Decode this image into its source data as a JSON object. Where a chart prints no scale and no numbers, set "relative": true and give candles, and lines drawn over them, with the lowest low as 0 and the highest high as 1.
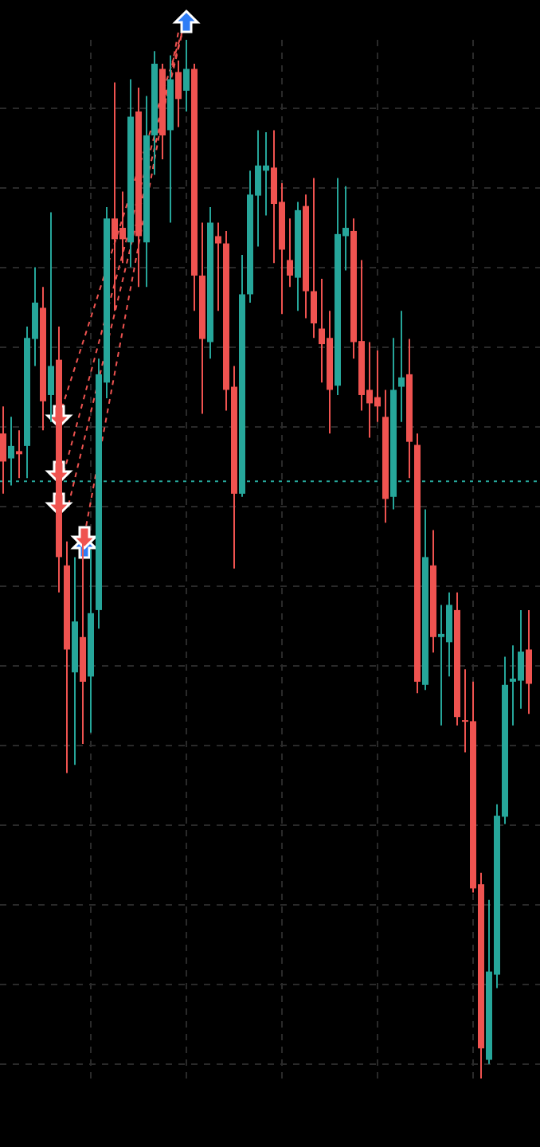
{
  "chart_data": {
    "type": "candlestick",
    "relative": true,
    "grid": true,
    "categories": [
      null,
      null,
      null,
      null,
      null,
      null,
      null,
      null,
      null,
      null,
      null,
      null,
      null,
      null,
      null,
      null,
      null,
      null,
      null,
      null,
      null,
      null,
      null,
      null,
      null,
      null,
      null,
      null,
      null,
      null,
      null,
      null,
      null,
      null,
      null,
      null,
      null,
      null,
      null,
      null,
      null,
      null,
      null,
      null,
      null,
      null,
      null,
      null,
      null,
      null,
      null,
      null,
      null,
      null,
      null,
      null,
      null,
      null,
      null,
      null,
      null,
      null,
      null,
      null,
      null,
      null,
      null
    ],
    "series": [
      {
        "colors": [
          "#ef5350",
          "#26a69a",
          "#ef5350",
          "#26a69a",
          "#26a69a",
          "#ef5350",
          "#26a69a",
          "#ef5350",
          "#ef5350",
          "#26a69a",
          "#ef5350",
          "#26a69a",
          "#26a69a",
          "#26a69a",
          "#ef5350",
          "#ef5350",
          "#26a69a",
          "#ef5350",
          "#26a69a",
          "#26a69a",
          "#ef5350",
          "#26a69a",
          "#ef5350",
          "#26a69a",
          "#ef5350",
          "#ef5350",
          "#26a69a",
          "#ef5350",
          "#ef5350",
          "#ef5350",
          "#26a69a",
          "#26a69a",
          "#26a69a",
          "#26a69a",
          "#ef5350",
          "#ef5350",
          "#ef5350",
          "#26a69a",
          "#ef5350",
          "#ef5350",
          "#ef5350",
          "#ef5350",
          "#26a69a",
          "#26a69a",
          "#ef5350",
          "#ef5350",
          "#ef5350",
          "#ef5350",
          "#ef5350",
          "#26a69a",
          "#26a69a",
          "#ef5350",
          "#ef5350",
          "#26a69a",
          "#ef5350",
          "#26a69a",
          "#26a69a",
          "#ef5350",
          "#ef5350",
          "#ef5350",
          "#ef5350",
          "#26a69a",
          "#26a69a",
          "#26a69a",
          "#26a69a",
          "#26a69a",
          "#ef5350"
        ],
        "ohlc": [
          [
            0.621,
            0.647,
            0.563,
            0.594
          ],
          [
            0.597,
            0.637,
            0.571,
            0.609
          ],
          [
            0.604,
            0.624,
            0.578,
            0.601
          ],
          [
            0.609,
            0.724,
            0.578,
            0.713
          ],
          [
            0.712,
            0.781,
            0.686,
            0.747
          ],
          [
            0.742,
            0.762,
            0.624,
            0.652
          ],
          [
            0.658,
            0.834,
            0.632,
            0.686
          ],
          [
            0.692,
            0.724,
            0.468,
            0.502
          ],
          [
            0.494,
            0.517,
            0.294,
            0.413
          ],
          [
            0.391,
            0.502,
            0.302,
            0.44
          ],
          [
            0.425,
            0.517,
            0.322,
            0.382
          ],
          [
            0.387,
            0.509,
            0.333,
            0.448
          ],
          [
            0.451,
            0.693,
            0.433,
            0.678
          ],
          [
            0.67,
            0.839,
            0.655,
            0.828
          ],
          [
            0.828,
            0.959,
            0.739,
            0.808
          ],
          [
            0.819,
            0.854,
            0.785,
            0.808
          ],
          [
            0.805,
            0.962,
            0.781,
            0.926
          ],
          [
            0.931,
            0.954,
            0.762,
            0.811
          ],
          [
            0.805,
            0.946,
            0.762,
            0.908
          ],
          [
            0.908,
            0.989,
            0.87,
            0.977
          ],
          [
            0.972,
            0.977,
            0.885,
            0.908
          ],
          [
            0.913,
            0.985,
            0.824,
            0.962
          ],
          [
            0.969,
            0.98,
            0.916,
            0.943
          ],
          [
            0.951,
            1,
            0.931,
            0.972
          ],
          [
            0.972,
            0.977,
            0.739,
            0.773
          ],
          [
            0.773,
            0.824,
            0.64,
            0.712
          ],
          [
            0.709,
            0.839,
            0.693,
            0.824
          ],
          [
            0.811,
            0.824,
            0.739,
            0.804
          ],
          [
            0.804,
            0.816,
            0.643,
            0.663
          ],
          [
            0.666,
            0.686,
            0.491,
            0.563
          ],
          [
            0.563,
            0.793,
            0.56,
            0.755
          ],
          [
            0.755,
            0.874,
            0.747,
            0.851
          ],
          [
            0.85,
            0.913,
            0.801,
            0.879
          ],
          [
            0.874,
            0.911,
            0.831,
            0.879
          ],
          [
            0.877,
            0.913,
            0.785,
            0.842
          ],
          [
            0.844,
            0.862,
            0.736,
            0.798
          ],
          [
            0.788,
            0.828,
            0.762,
            0.773
          ],
          [
            0.771,
            0.844,
            0.739,
            0.836
          ],
          [
            0.84,
            0.851,
            0.732,
            0.758
          ],
          [
            0.758,
            0.867,
            0.713,
            0.727
          ],
          [
            0.722,
            0.77,
            0.67,
            0.707
          ],
          [
            0.713,
            0.739,
            0.621,
            0.663
          ],
          [
            0.667,
            0.867,
            0.658,
            0.813
          ],
          [
            0.811,
            0.859,
            0.778,
            0.819
          ],
          [
            0.816,
            0.828,
            0.693,
            0.709
          ],
          [
            0.71,
            0.788,
            0.643,
            0.658
          ],
          [
            0.663,
            0.709,
            0.617,
            0.65
          ],
          [
            0.656,
            0.701,
            0.632,
            0.647
          ],
          [
            0.637,
            0.663,
            0.535,
            0.558
          ],
          [
            0.56,
            0.713,
            0.548,
            0.663
          ],
          [
            0.666,
            0.739,
            0.632,
            0.675
          ],
          [
            0.678,
            0.712,
            0.578,
            0.613
          ],
          [
            0.61,
            0.621,
            0.371,
            0.382
          ],
          [
            0.379,
            0.548,
            0.374,
            0.502
          ],
          [
            0.494,
            0.528,
            0.41,
            0.425
          ],
          [
            0.425,
            0.456,
            0.34,
            0.428
          ],
          [
            0.42,
            0.468,
            0.387,
            0.456
          ],
          [
            0.451,
            0.468,
            0.34,
            0.348
          ],
          [
            0.345,
            0.394,
            0.314,
            0.344
          ],
          [
            0.344,
            0.382,
            0.179,
            0.183
          ],
          [
            0.187,
            0.198,
            0,
            0.029
          ],
          [
            0.018,
            0.172,
            0.014,
            0.103
          ],
          [
            0.1,
            0.264,
            0.087,
            0.253
          ],
          [
            0.252,
            0.406,
            0.245,
            0.379
          ],
          [
            0.382,
            0.417,
            0.34,
            0.385
          ],
          [
            0.383,
            0.451,
            0.356,
            0.411
          ],
          [
            0.413,
            0.451,
            0.351,
            0.38
          ]
        ]
      }
    ],
    "ref_lines": [
      {
        "axis": "y",
        "value": 0.575,
        "color": "#26a69a",
        "line_style": "dotted"
      }
    ]
  }
}
